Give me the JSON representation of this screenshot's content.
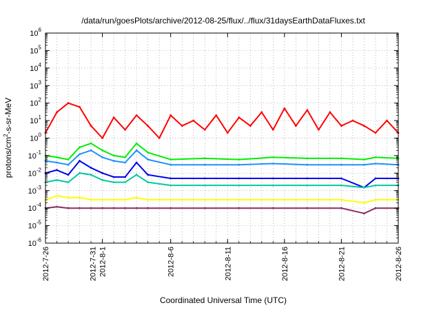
{
  "chart_data": {
    "type": "line",
    "title": "/data/run/goesPlots/archive/2012-08-25/flux/../flux/31daysEarthDataFluxes.txt",
    "xlabel": "Coordinated Universal Time (UTC)",
    "ylabel_parts": [
      "protons/cm",
      "2",
      "-s-sr-MeV"
    ],
    "y_scale": "log",
    "ylim": [
      1e-06,
      1000000.0
    ],
    "xlim": [
      "2012-07-26",
      "2012-08-26"
    ],
    "grid": true,
    "y_ticks": [
      {
        "value": 1e-06,
        "base": "10",
        "exp": "-6"
      },
      {
        "value": 1e-05,
        "base": "10",
        "exp": "-5"
      },
      {
        "value": 0.0001,
        "base": "10",
        "exp": "-4"
      },
      {
        "value": 0.001,
        "base": "10",
        "exp": "-3"
      },
      {
        "value": 0.01,
        "base": "10",
        "exp": "-2"
      },
      {
        "value": 0.1,
        "base": "10",
        "exp": "-1"
      },
      {
        "value": 1.0,
        "base": "10",
        "exp": "0"
      },
      {
        "value": 10.0,
        "base": "10",
        "exp": "1"
      },
      {
        "value": 100.0,
        "base": "10",
        "exp": "2"
      },
      {
        "value": 1000.0,
        "base": "10",
        "exp": "3"
      },
      {
        "value": 10000.0,
        "base": "10",
        "exp": "4"
      },
      {
        "value": 100000.0,
        "base": "10",
        "exp": "5"
      },
      {
        "value": 1000000.0,
        "base": "10",
        "exp": "6"
      }
    ],
    "x_ticks": [
      {
        "date": "2012-07-26",
        "lines": [
          "2012-7-26"
        ]
      },
      {
        "date": "2012-07-31",
        "lines": [
          "2012-7-31",
          "2012-8-1"
        ]
      },
      {
        "date": "2012-08-06",
        "lines": [
          "2012-8-6"
        ]
      },
      {
        "date": "2012-08-11",
        "lines": [
          "2012-8-11"
        ]
      },
      {
        "date": "2012-08-16",
        "lines": [
          "2012-8-16"
        ]
      },
      {
        "date": "2012-08-21",
        "lines": [
          "2012-8-21"
        ]
      },
      {
        "date": "2012-08-26",
        "lines": [
          "2012-8-26"
        ]
      }
    ],
    "series": [
      {
        "color": "#ff0000",
        "x": [
          "2012-07-26",
          "2012-07-27",
          "2012-07-28",
          "2012-07-29",
          "2012-07-30",
          "2012-07-31",
          "2012-08-01",
          "2012-08-02",
          "2012-08-03",
          "2012-08-04",
          "2012-08-05",
          "2012-08-06",
          "2012-08-07",
          "2012-08-08",
          "2012-08-09",
          "2012-08-10",
          "2012-08-11",
          "2012-08-12",
          "2012-08-13",
          "2012-08-14",
          "2012-08-15",
          "2012-08-16",
          "2012-08-17",
          "2012-08-18",
          "2012-08-19",
          "2012-08-20",
          "2012-08-21",
          "2012-08-22",
          "2012-08-23",
          "2012-08-24",
          "2012-08-25",
          "2012-08-26"
        ],
        "y": [
          2,
          30,
          100,
          60,
          5,
          1,
          15,
          3,
          20,
          5,
          1,
          20,
          5,
          10,
          3,
          20,
          2,
          15,
          5,
          30,
          3,
          50,
          5,
          40,
          3,
          30,
          5,
          10,
          5,
          2,
          10,
          2
        ]
      },
      {
        "color": "#00ee00",
        "x": [
          "2012-07-26",
          "2012-07-27",
          "2012-07-28",
          "2012-07-29",
          "2012-07-30",
          "2012-07-31",
          "2012-08-01",
          "2012-08-02",
          "2012-08-03",
          "2012-08-04",
          "2012-08-06",
          "2012-08-09",
          "2012-08-12",
          "2012-08-15",
          "2012-08-18",
          "2012-08-21",
          "2012-08-23",
          "2012-08-24",
          "2012-08-26"
        ],
        "y": [
          0.1,
          0.08,
          0.06,
          0.3,
          0.5,
          0.2,
          0.1,
          0.08,
          0.5,
          0.15,
          0.06,
          0.07,
          0.06,
          0.08,
          0.07,
          0.07,
          0.06,
          0.08,
          0.07
        ]
      },
      {
        "color": "#1e90ff",
        "x": [
          "2012-07-26",
          "2012-07-27",
          "2012-07-28",
          "2012-07-29",
          "2012-07-30",
          "2012-07-31",
          "2012-08-01",
          "2012-08-02",
          "2012-08-03",
          "2012-08-04",
          "2012-08-06",
          "2012-08-09",
          "2012-08-12",
          "2012-08-15",
          "2012-08-18",
          "2012-08-21",
          "2012-08-23",
          "2012-08-24",
          "2012-08-26"
        ],
        "y": [
          0.05,
          0.04,
          0.03,
          0.12,
          0.2,
          0.08,
          0.05,
          0.04,
          0.2,
          0.06,
          0.03,
          0.03,
          0.03,
          0.035,
          0.03,
          0.03,
          0.03,
          0.035,
          0.03
        ]
      },
      {
        "color": "#0000ee",
        "x": [
          "2012-07-26",
          "2012-07-27",
          "2012-07-28",
          "2012-07-29",
          "2012-07-30",
          "2012-07-31",
          "2012-08-01",
          "2012-08-02",
          "2012-08-03",
          "2012-08-04",
          "2012-08-06",
          "2012-08-09",
          "2012-08-12",
          "2012-08-15",
          "2012-08-18",
          "2012-08-21",
          "2012-08-23",
          "2012-08-24",
          "2012-08-26"
        ],
        "y": [
          0.01,
          0.015,
          0.008,
          0.05,
          0.02,
          0.01,
          0.006,
          0.006,
          0.04,
          0.008,
          0.005,
          0.005,
          0.005,
          0.005,
          0.005,
          0.005,
          0.0015,
          0.005,
          0.005
        ]
      },
      {
        "color": "#00c8a0",
        "x": [
          "2012-07-26",
          "2012-07-27",
          "2012-07-28",
          "2012-07-29",
          "2012-07-30",
          "2012-07-31",
          "2012-08-01",
          "2012-08-02",
          "2012-08-03",
          "2012-08-04",
          "2012-08-06",
          "2012-08-09",
          "2012-08-12",
          "2012-08-15",
          "2012-08-18",
          "2012-08-21",
          "2012-08-23",
          "2012-08-24",
          "2012-08-26"
        ],
        "y": [
          0.003,
          0.004,
          0.003,
          0.01,
          0.008,
          0.004,
          0.003,
          0.003,
          0.008,
          0.003,
          0.002,
          0.002,
          0.002,
          0.002,
          0.002,
          0.002,
          0.0015,
          0.002,
          0.002
        ]
      },
      {
        "color": "#ffff00",
        "x": [
          "2012-07-26",
          "2012-07-27",
          "2012-07-28",
          "2012-07-29",
          "2012-07-30",
          "2012-07-31",
          "2012-08-01",
          "2012-08-02",
          "2012-08-03",
          "2012-08-04",
          "2012-08-06",
          "2012-08-09",
          "2012-08-12",
          "2012-08-15",
          "2012-08-18",
          "2012-08-21",
          "2012-08-23",
          "2012-08-24",
          "2012-08-26"
        ],
        "y": [
          0.0003,
          0.0005,
          0.0004,
          0.0004,
          0.0003,
          0.0003,
          0.0003,
          0.0003,
          0.0004,
          0.0003,
          0.0003,
          0.0003,
          0.0003,
          0.0003,
          0.0003,
          0.0003,
          0.0002,
          0.0003,
          0.0003
        ]
      },
      {
        "color": "#8b2d5f",
        "x": [
          "2012-07-26",
          "2012-07-27",
          "2012-07-28",
          "2012-07-29",
          "2012-07-30",
          "2012-07-31",
          "2012-08-01",
          "2012-08-02",
          "2012-08-03",
          "2012-08-04",
          "2012-08-06",
          "2012-08-09",
          "2012-08-12",
          "2012-08-15",
          "2012-08-18",
          "2012-08-21",
          "2012-08-23",
          "2012-08-24",
          "2012-08-26"
        ],
        "y": [
          0.0001,
          0.00012,
          0.0001,
          0.0001,
          0.0001,
          0.0001,
          0.0001,
          0.0001,
          0.0001,
          0.0001,
          0.0001,
          0.0001,
          0.0001,
          0.0001,
          0.0001,
          0.0001,
          5e-05,
          0.0001,
          0.0001
        ]
      }
    ]
  }
}
